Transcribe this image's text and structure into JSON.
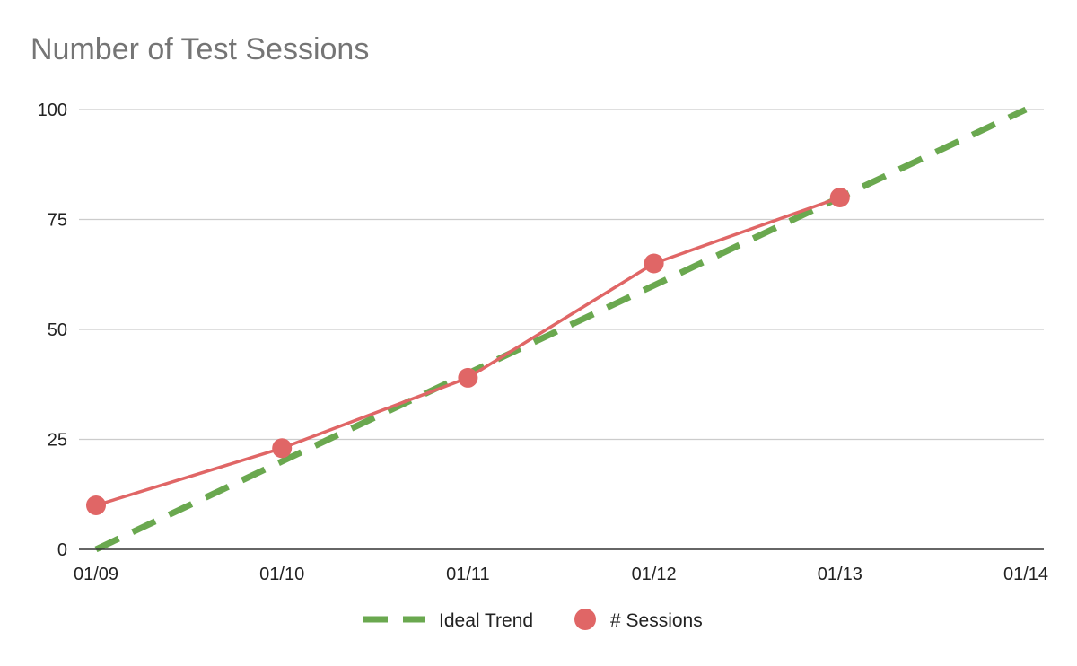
{
  "chart_data": {
    "type": "line",
    "title": "Number of Test Sessions",
    "categories": [
      "01/09",
      "01/10",
      "01/11",
      "01/12",
      "01/13",
      "01/14"
    ],
    "y_ticks": [
      "0",
      "25",
      "50",
      "75",
      "100"
    ],
    "ylim": [
      0,
      100
    ],
    "grid": true,
    "legend_position": "bottom",
    "series": [
      {
        "name": "Ideal Trend",
        "style": "dashed",
        "color": "#6aa84f",
        "values": [
          0,
          20,
          40,
          60,
          80,
          100
        ]
      },
      {
        "name": "# Sessions",
        "style": "solid-with-markers",
        "color": "#e06666",
        "values": [
          10,
          23,
          39,
          65,
          80,
          null
        ]
      }
    ]
  }
}
